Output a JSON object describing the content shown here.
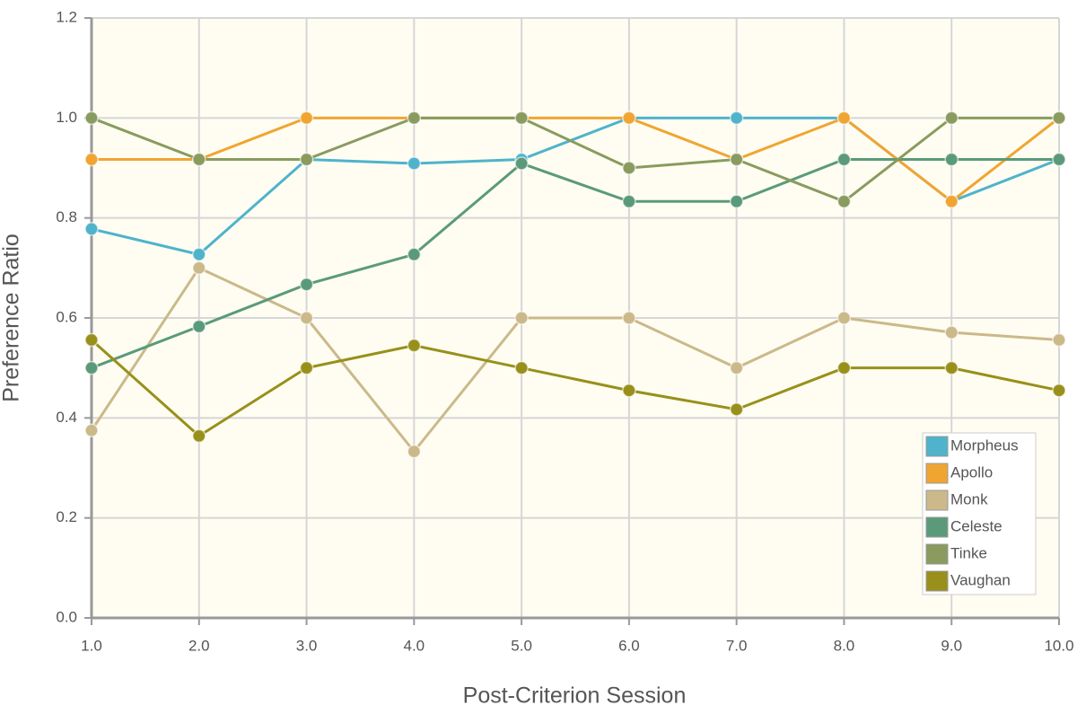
{
  "chart_data": {
    "type": "line",
    "xlabel": "Post-Criterion Session",
    "ylabel": "Preference Ratio",
    "x": [
      1,
      2,
      3,
      4,
      5,
      6,
      7,
      8,
      9,
      10
    ],
    "xlim": [
      1,
      10
    ],
    "xticks": [
      {
        "value": 1,
        "label": "1.0"
      },
      {
        "value": 2,
        "label": "2.0"
      },
      {
        "value": 3,
        "label": "3.0"
      },
      {
        "value": 4,
        "label": "4.0"
      },
      {
        "value": 5,
        "label": "5.0"
      },
      {
        "value": 6,
        "label": "6.0"
      },
      {
        "value": 7,
        "label": "7.0"
      },
      {
        "value": 8,
        "label": "8.0"
      },
      {
        "value": 9,
        "label": "9.0"
      },
      {
        "value": 10,
        "label": "10.0"
      }
    ],
    "ylim": [
      0,
      1.2
    ],
    "yticks": [
      {
        "value": 0,
        "label": "0.0"
      },
      0.2,
      0.4,
      0.6,
      0.8,
      {
        "value": 1,
        "label": "1.0"
      },
      1.2
    ],
    "grid": true,
    "legend": "lower right",
    "series": [
      {
        "name": "Morpheus",
        "color": "#4fb3cb",
        "values": [
          0.778,
          0.727,
          0.917,
          0.909,
          0.917,
          1.0,
          1.0,
          1.0,
          0.833,
          0.917
        ]
      },
      {
        "name": "Apollo",
        "color": "#f0a532",
        "values": [
          0.917,
          0.917,
          1.0,
          1.0,
          1.0,
          1.0,
          0.917,
          1.0,
          0.833,
          1.0
        ]
      },
      {
        "name": "Monk",
        "color": "#cbb98a",
        "values": [
          0.375,
          0.7,
          0.6,
          0.333,
          0.6,
          0.6,
          0.5,
          0.6,
          0.571,
          0.556
        ]
      },
      {
        "name": "Celeste",
        "color": "#5a9a7a",
        "values": [
          0.5,
          0.583,
          0.667,
          0.727,
          0.909,
          0.833,
          0.833,
          0.917,
          0.917,
          0.917
        ]
      },
      {
        "name": "Tinke",
        "color": "#899b5e",
        "values": [
          1.0,
          0.917,
          0.917,
          1.0,
          1.0,
          0.9,
          0.917,
          0.833,
          1.0,
          1.0
        ]
      },
      {
        "name": "Vaughan",
        "color": "#98901a",
        "values": [
          0.556,
          0.364,
          0.5,
          0.545,
          0.5,
          0.455,
          0.417,
          0.5,
          0.5,
          0.455
        ]
      }
    ]
  }
}
